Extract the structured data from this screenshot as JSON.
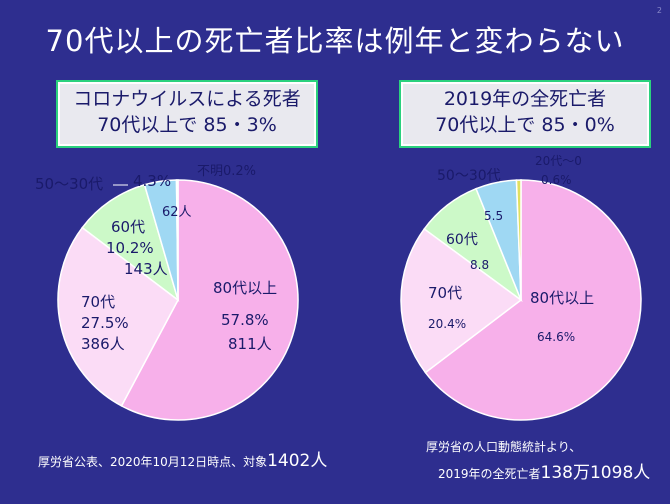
{
  "page_number": "2",
  "title": "70代以上の死亡者比率は例年と変わらない",
  "left_box": {
    "line1": "コロナウイルスによる死者",
    "line2": "70代以上で 85・3%"
  },
  "right_box": {
    "line1": "2019年の全死亡者",
    "line2": "70代以上で 85・0%"
  },
  "left_note": {
    "prefix": "厚労省公表、2020年10月12日時点、対象",
    "emph": "1402人"
  },
  "right_note": {
    "line1": "厚労省の人口動態統計より、",
    "line2_prefix": "2019年の全死亡者",
    "line2_emph": "138万1098人"
  },
  "colors": {
    "pink": "#f7b0ea",
    "light_pink": "#fbdcf6",
    "green": "#ccf9c8",
    "blue": "#9fd8f3",
    "yellow": "#e0e060",
    "edge": "#ffffff",
    "label": "#1a1a6a"
  },
  "chart_data": [
    {
      "type": "pie",
      "title": "コロナウイルスによる死者",
      "slices": [
        {
          "name": "80代以上",
          "percent": 57.8,
          "count": "811人",
          "pct_label": "57.8%",
          "color_key": "pink"
        },
        {
          "name": "70代",
          "percent": 27.5,
          "count": "386人",
          "pct_label": "27.5%",
          "color_key": "light_pink"
        },
        {
          "name": "60代",
          "percent": 10.2,
          "count": "143人",
          "pct_label": "10.2%",
          "color_key": "green"
        },
        {
          "name": "50〜30代",
          "percent": 4.3,
          "count": "62人",
          "pct_label": "4.3%",
          "color_key": "blue"
        },
        {
          "name": "不明",
          "percent": 0.2,
          "count": "",
          "pct_label": "不明0.2%",
          "color_key": "yellow"
        }
      ]
    },
    {
      "type": "pie",
      "title": "2019年の全死亡者",
      "slices": [
        {
          "name": "80代以上",
          "percent": 64.6,
          "pct_label": "64.6%",
          "color_key": "pink"
        },
        {
          "name": "70代",
          "percent": 20.4,
          "pct_label": "20.4%",
          "color_key": "light_pink"
        },
        {
          "name": "60代",
          "percent": 8.8,
          "pct_label": "8.8",
          "color_key": "green"
        },
        {
          "name": "50〜30代",
          "percent": 5.5,
          "pct_label": "5.5",
          "color_key": "blue"
        },
        {
          "name": "20代〜0",
          "percent": 0.6,
          "pct_label": "0.6%",
          "color_key": "yellow"
        }
      ]
    }
  ]
}
